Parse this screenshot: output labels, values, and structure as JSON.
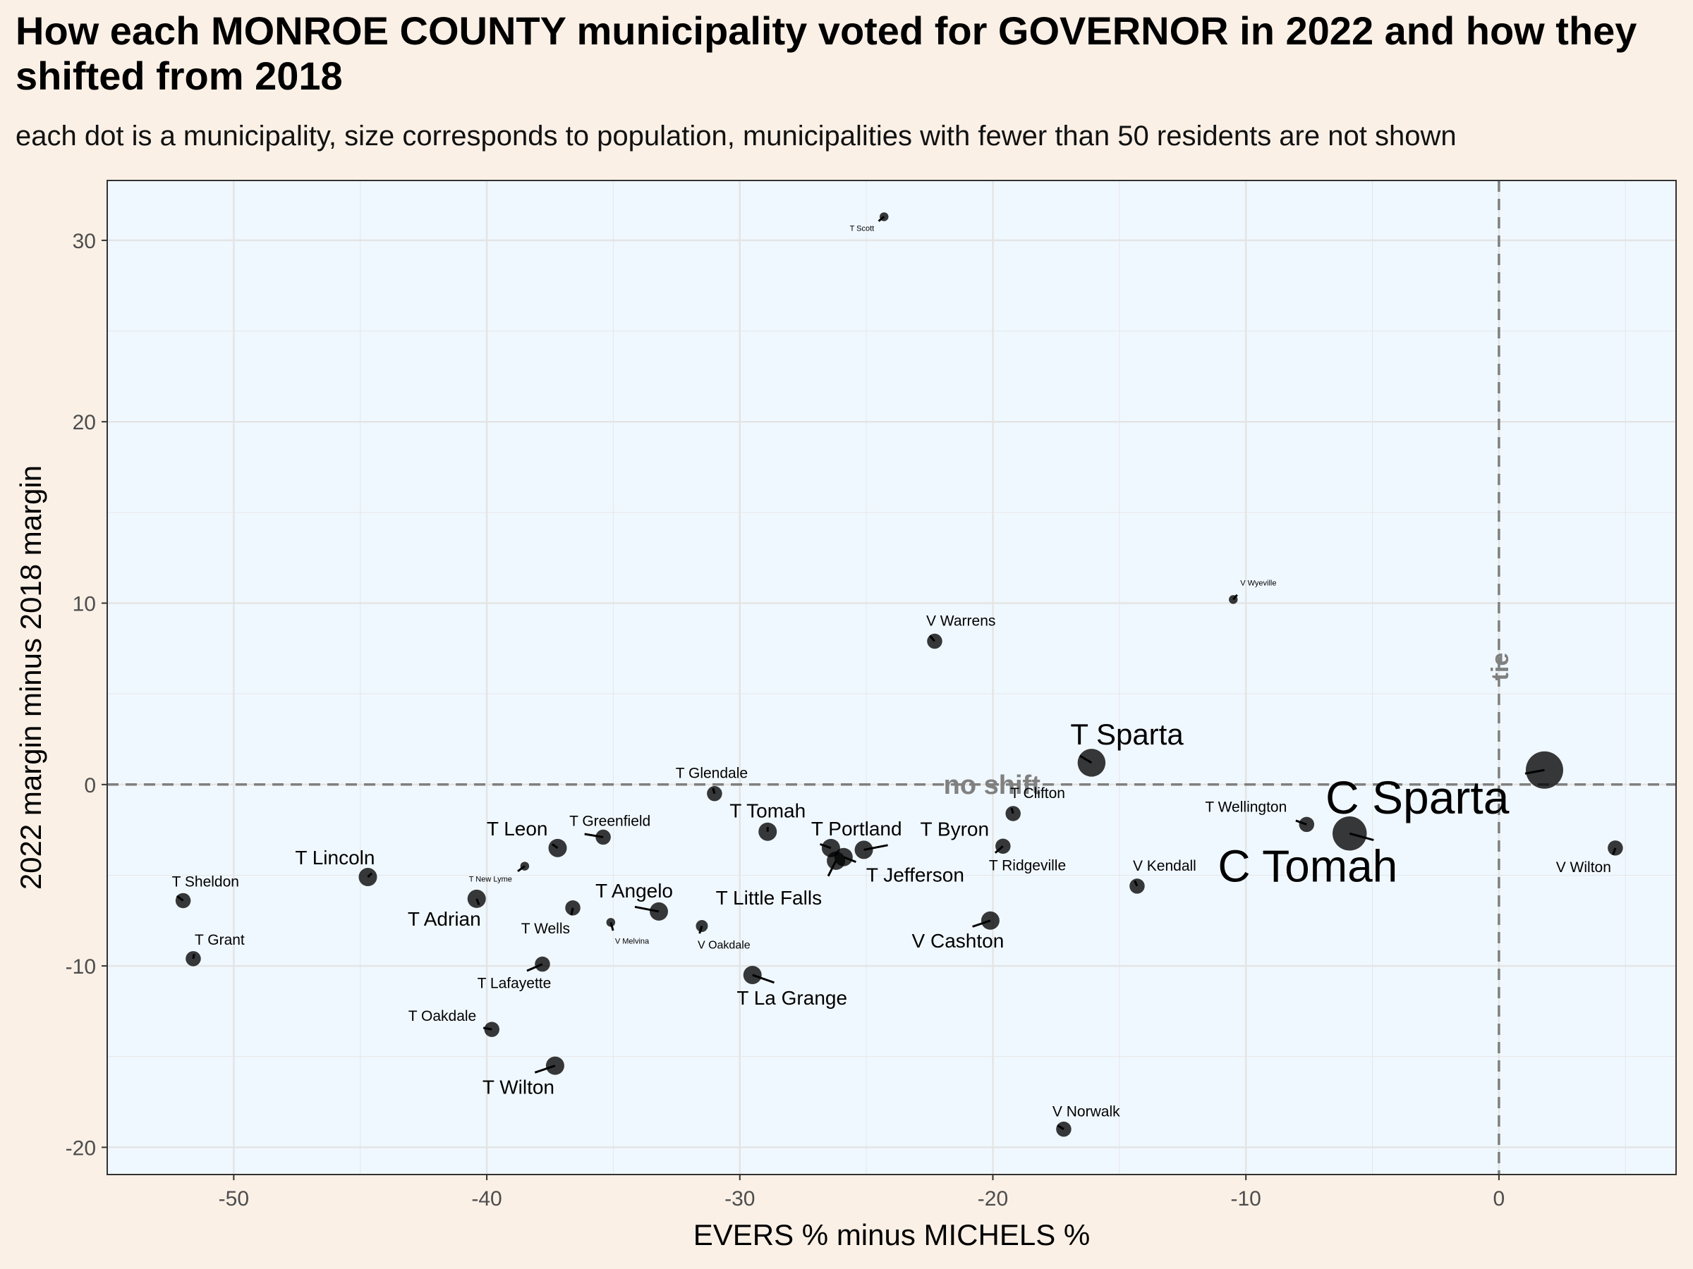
{
  "title": "How each MONROE COUNTY municipality voted for GOVERNOR in 2022 and how they shifted from 2018",
  "subtitle": "each dot is a municipality, size corresponds to population, municipalities with fewer than 50 residents are not shown",
  "chart_data": {
    "type": "scatter",
    "xlabel": "EVERS % minus MICHELS %",
    "ylabel": "2022 margin minus 2018 margin",
    "xlim": [
      -55,
      7
    ],
    "ylim": [
      -21.5,
      33.3
    ],
    "x_ticks": [
      -50,
      -40,
      -30,
      -20,
      -10,
      0
    ],
    "y_ticks": [
      -20,
      -10,
      0,
      10,
      20,
      30
    ],
    "grid": true,
    "reference_lines": [
      {
        "axis": "y",
        "value": 0,
        "label": "no shift"
      },
      {
        "axis": "x",
        "value": 0,
        "label": "tie"
      }
    ],
    "points": [
      {
        "name": "T Scott",
        "x": -24.3,
        "y": 31.3,
        "size": 1
      },
      {
        "name": "V Wyeville",
        "x": -10.5,
        "y": 10.2,
        "size": 1
      },
      {
        "name": "V Warrens",
        "x": -22.3,
        "y": 7.9,
        "size": 3
      },
      {
        "name": "T Sparta",
        "x": -16.1,
        "y": 1.2,
        "size": 7
      },
      {
        "name": "C Sparta",
        "x": 1.8,
        "y": 0.8,
        "size": 10
      },
      {
        "name": "C Tomah",
        "x": -5.9,
        "y": -2.7,
        "size": 9
      },
      {
        "name": "T Glendale",
        "x": -31.0,
        "y": -0.5,
        "size": 3
      },
      {
        "name": "T Clifton",
        "x": -19.2,
        "y": -1.6,
        "size": 3
      },
      {
        "name": "T Wellington",
        "x": -7.6,
        "y": -2.2,
        "size": 3
      },
      {
        "name": "T Tomah",
        "x": -28.9,
        "y": -2.6,
        "size": 4
      },
      {
        "name": "T Greenfield",
        "x": -35.4,
        "y": -2.9,
        "size": 3
      },
      {
        "name": "T Byron",
        "x": -25.1,
        "y": -3.6,
        "size": 4
      },
      {
        "name": "T Portland",
        "x": -26.4,
        "y": -3.5,
        "size": 4
      },
      {
        "name": "T Ridgeville",
        "x": -19.6,
        "y": -3.4,
        "size": 3
      },
      {
        "name": "V Wilton",
        "x": 4.6,
        "y": -3.5,
        "size": 3
      },
      {
        "name": "T Leon",
        "x": -37.2,
        "y": -3.5,
        "size": 4
      },
      {
        "name": "T Little Falls",
        "x": -26.2,
        "y": -4.2,
        "size": 4
      },
      {
        "name": "T Jefferson",
        "x": -25.9,
        "y": -4.0,
        "size": 4
      },
      {
        "name": "T New Lyme",
        "x": -38.5,
        "y": -4.5,
        "size": 1
      },
      {
        "name": "T Lincoln",
        "x": -44.7,
        "y": -5.1,
        "size": 4
      },
      {
        "name": "V Kendall",
        "x": -14.3,
        "y": -5.6,
        "size": 3
      },
      {
        "name": "T Sheldon",
        "x": -52.0,
        "y": -6.4,
        "size": 3
      },
      {
        "name": "T Adrian",
        "x": -40.4,
        "y": -6.3,
        "size": 4
      },
      {
        "name": "T Wells",
        "x": -36.6,
        "y": -6.8,
        "size": 3
      },
      {
        "name": "T Angelo",
        "x": -33.2,
        "y": -7.0,
        "size": 4
      },
      {
        "name": "V Melvina",
        "x": -35.1,
        "y": -7.6,
        "size": 1
      },
      {
        "name": "V Cashton",
        "x": -20.1,
        "y": -7.5,
        "size": 4
      },
      {
        "name": "V Oakdale",
        "x": -31.5,
        "y": -7.8,
        "size": 2
      },
      {
        "name": "T Grant",
        "x": -51.6,
        "y": -9.6,
        "size": 3
      },
      {
        "name": "T Lafayette",
        "x": -37.8,
        "y": -9.9,
        "size": 3
      },
      {
        "name": "T La Grange",
        "x": -29.5,
        "y": -10.5,
        "size": 4
      },
      {
        "name": "T Oakdale",
        "x": -39.8,
        "y": -13.5,
        "size": 3
      },
      {
        "name": "T Wilton",
        "x": -37.3,
        "y": -15.5,
        "size": 4
      },
      {
        "name": "V Norwalk",
        "x": -17.2,
        "y": -19.0,
        "size": 3
      }
    ]
  }
}
